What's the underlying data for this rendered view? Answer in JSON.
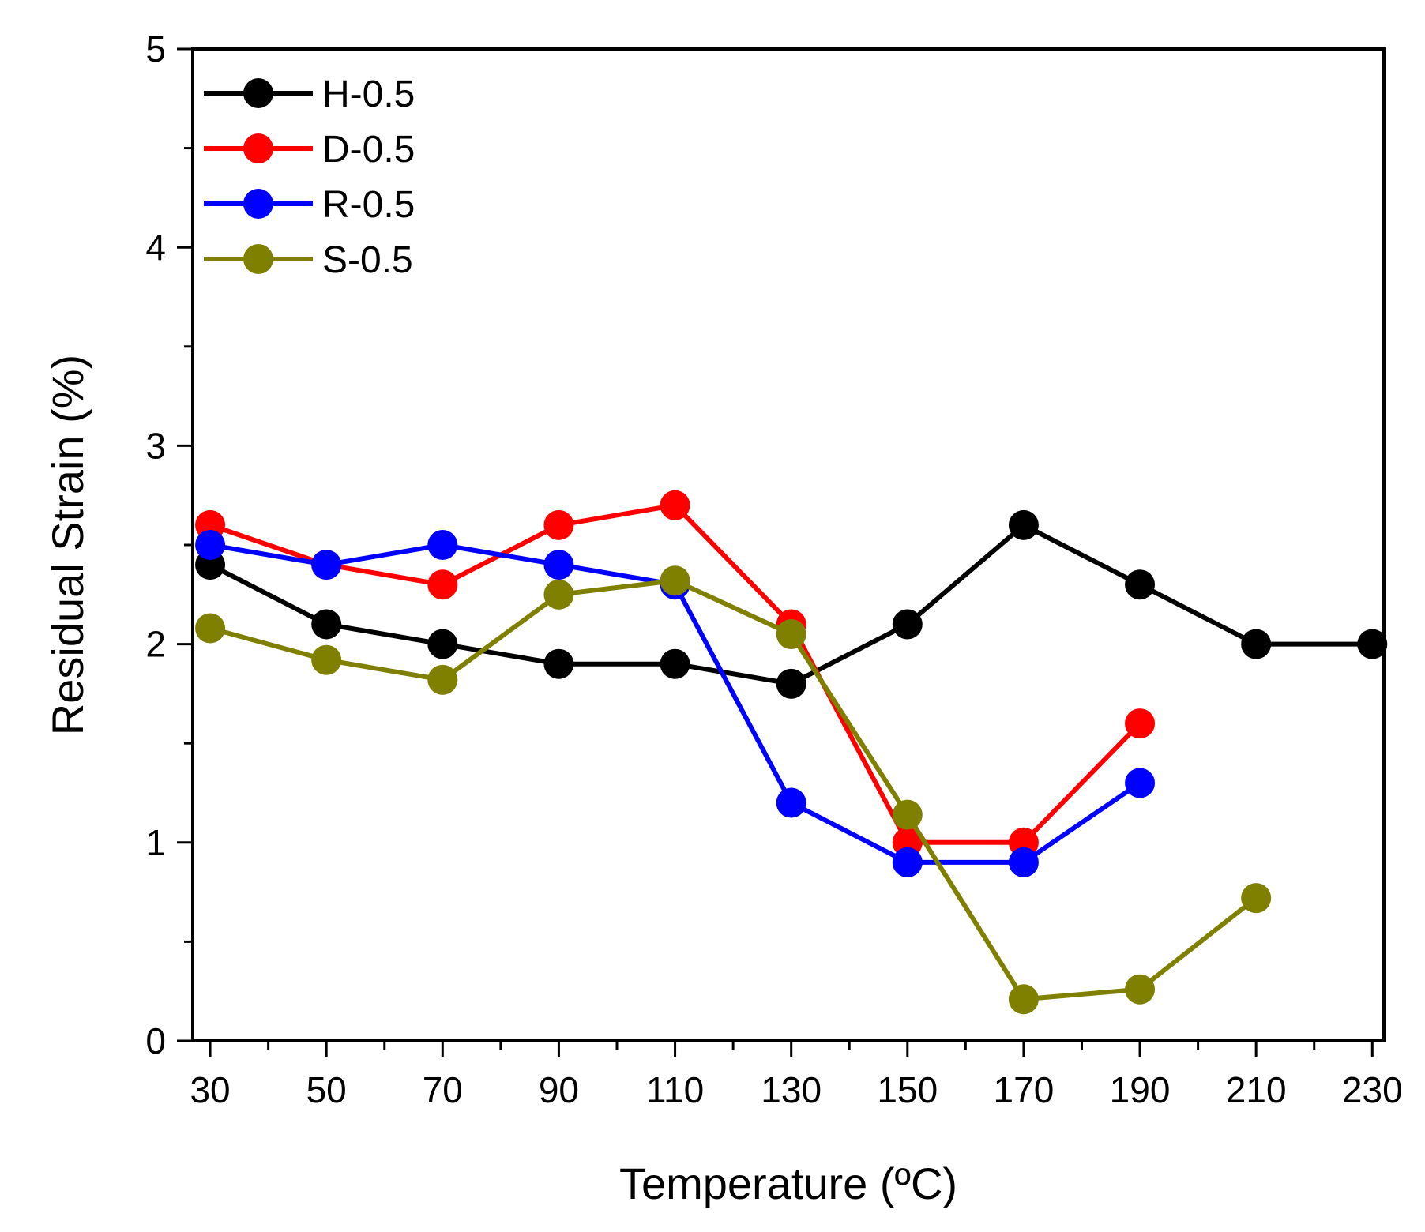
{
  "chart_data": {
    "type": "line",
    "title": "",
    "xlabel": "Temperature (ºC)",
    "ylabel": "Residual Strain (%)",
    "xlim": [
      27,
      232
    ],
    "ylim": [
      0,
      5
    ],
    "x_ticks": [
      30,
      50,
      70,
      90,
      110,
      130,
      150,
      170,
      190,
      210,
      230
    ],
    "x_tick_labels": [
      "30",
      "50",
      "70",
      "90",
      "110",
      "130",
      "150",
      "170",
      "190",
      "210",
      "230"
    ],
    "y_ticks": [
      0,
      1,
      2,
      3,
      4,
      5
    ],
    "y_tick_labels": [
      "0",
      "1",
      "2",
      "3",
      "4",
      "5"
    ],
    "grid": false,
    "legend_position": "top-left",
    "series": [
      {
        "name": "H-0.5",
        "color": "#000000",
        "x": [
          30,
          50,
          70,
          90,
          110,
          130,
          150,
          170,
          190,
          210,
          230
        ],
        "values": [
          2.4,
          2.1,
          2.0,
          1.9,
          1.9,
          1.8,
          2.1,
          2.6,
          2.3,
          2.0,
          2.0
        ]
      },
      {
        "name": "D-0.5",
        "color": "#ff0000",
        "x": [
          30,
          50,
          70,
          90,
          110,
          130,
          150,
          170,
          190
        ],
        "values": [
          2.6,
          2.4,
          2.3,
          2.6,
          2.7,
          2.1,
          1.0,
          1.0,
          1.6
        ]
      },
      {
        "name": "R-0.5",
        "color": "#0000ff",
        "x": [
          30,
          50,
          70,
          90,
          110,
          130,
          150,
          170,
          190
        ],
        "values": [
          2.5,
          2.4,
          2.5,
          2.4,
          2.3,
          1.2,
          0.9,
          0.9,
          1.3
        ]
      },
      {
        "name": "S-0.5",
        "color": "#808000",
        "x": [
          30,
          50,
          70,
          90,
          110,
          130,
          150,
          170,
          190,
          210
        ],
        "values": [
          2.08,
          1.92,
          1.82,
          2.25,
          2.32,
          2.05,
          1.14,
          0.21,
          0.26,
          0.72
        ]
      }
    ]
  }
}
